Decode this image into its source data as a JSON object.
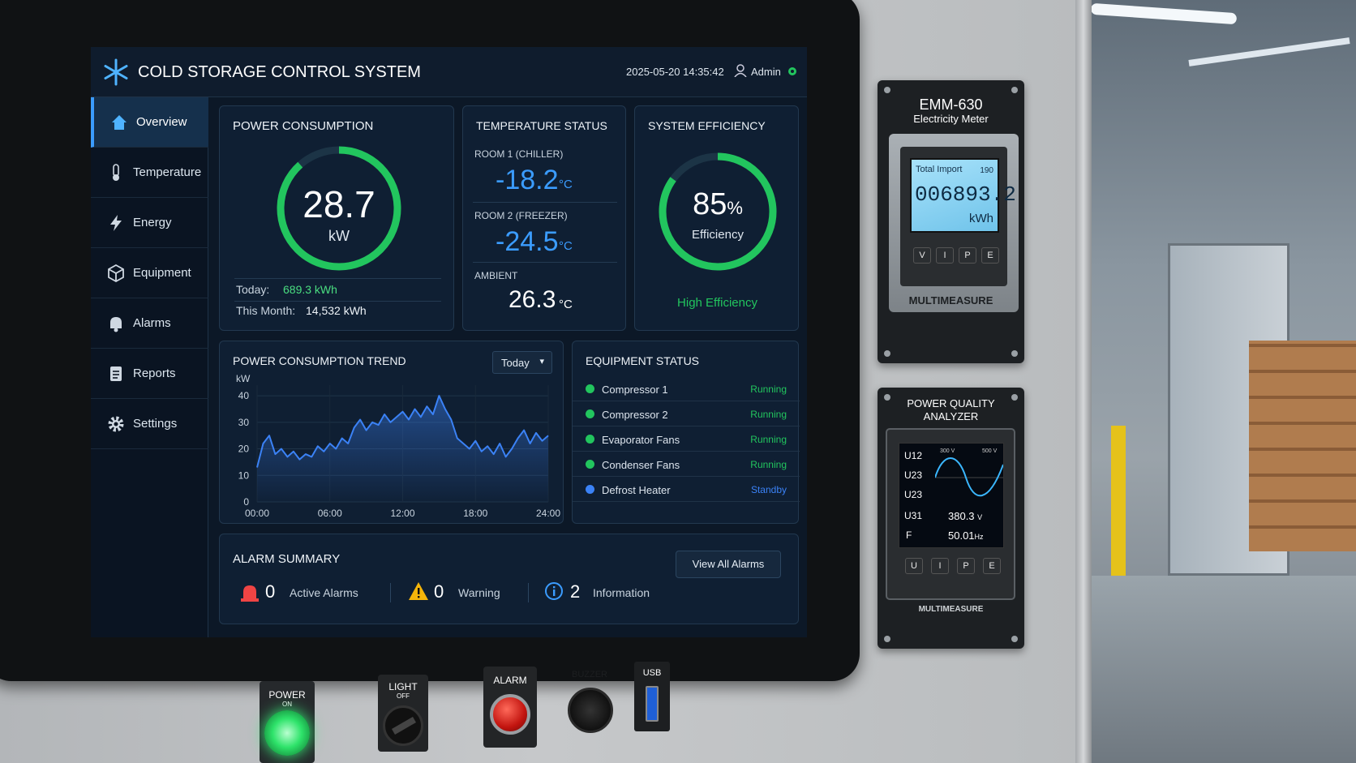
{
  "header": {
    "title": "COLD STORAGE CONTROL SYSTEM",
    "datetime": "2025-05-20 14:35:42",
    "user": "Admin"
  },
  "nav": [
    "Overview",
    "Temperature",
    "Energy",
    "Equipment",
    "Alarms",
    "Reports",
    "Settings"
  ],
  "power": {
    "title": "POWER CONSUMPTION",
    "value": "28.7",
    "unit": "kW",
    "today_label": "Today:",
    "today": "689.3 kWh",
    "month_label": "This Month:",
    "month": "14,532 kWh"
  },
  "temperature": {
    "title": "TEMPERATURE STATUS",
    "rooms": [
      {
        "label": "ROOM 1 (CHILLER)",
        "value": "-18.2",
        "unit": "°C"
      },
      {
        "label": "ROOM 2 (FREEZER)",
        "value": "-24.5",
        "unit": "°C"
      },
      {
        "label": "AMBIENT",
        "value": "26.3",
        "unit": "°C"
      }
    ]
  },
  "efficiency": {
    "title": "SYSTEM EFFICIENCY",
    "value": 85,
    "unit": "%",
    "label": "Efficiency",
    "status": "High Efficiency",
    "color": "#22c55e"
  },
  "chart_data": {
    "type": "line",
    "title": "POWER CONSUMPTION TREND",
    "range": "Today",
    "y_label": "kW",
    "x": [
      0,
      0.5,
      1,
      1.5,
      2,
      2.5,
      3,
      3.5,
      4,
      4.5,
      5,
      5.5,
      6,
      6.5,
      7,
      7.5,
      8,
      8.5,
      9,
      9.5,
      10,
      10.5,
      11,
      11.5,
      12,
      12.5,
      13,
      13.5,
      14,
      14.5,
      15,
      15.5,
      16,
      16.5,
      17,
      17.5,
      18,
      18.5,
      19,
      19.5,
      20,
      20.5,
      21,
      21.5,
      22,
      22.5,
      23,
      23.5,
      24
    ],
    "values": [
      13,
      22,
      25,
      18,
      20,
      17,
      19,
      16,
      18,
      17,
      21,
      19,
      22,
      20,
      24,
      22,
      28,
      31,
      27,
      30,
      29,
      33,
      30,
      32,
      34,
      31,
      35,
      32,
      36,
      33,
      40,
      35,
      31,
      24,
      22,
      20,
      23,
      19,
      21,
      18,
      22,
      17,
      20,
      24,
      27,
      22,
      26,
      23,
      25
    ],
    "color": "#3b82f6",
    "xlim": [
      0,
      24
    ],
    "xticks": [
      {
        "value": 0,
        "label": "00:00"
      },
      {
        "value": 6,
        "label": "06:00"
      },
      {
        "value": 12,
        "label": "12:00"
      },
      {
        "value": 18,
        "label": "18:00"
      },
      {
        "value": 24,
        "label": "24:00"
      }
    ],
    "ylim": [
      0,
      44
    ],
    "yticks": [
      0,
      10,
      20,
      30,
      40
    ],
    "grid": true
  },
  "equipment": {
    "title": "EQUIPMENT STATUS",
    "items": [
      {
        "name": "Compressor 1",
        "status": "Running",
        "color": "#22c55e"
      },
      {
        "name": "Compressor 2",
        "status": "Running",
        "color": "#22c55e"
      },
      {
        "name": "Evaporator Fans",
        "status": "Running",
        "color": "#22c55e"
      },
      {
        "name": "Condenser Fans",
        "status": "Running",
        "color": "#22c55e"
      },
      {
        "name": "Defrost Heater",
        "status": "Standby",
        "color": "#3b82f6"
      }
    ]
  },
  "alarms": {
    "title": "ALARM SUMMARY",
    "items": [
      {
        "count": 0,
        "label": "Active Alarms"
      },
      {
        "count": 0,
        "label": "Warning"
      },
      {
        "count": 2,
        "label": "Information"
      }
    ],
    "button": "View All Alarms"
  },
  "meter": {
    "model": "EMM-630",
    "name": "Electricity Meter",
    "reading_label": "Total Import",
    "code": "190",
    "reading": "006893.2",
    "unit": "kWh",
    "buttons": [
      "V",
      "I",
      "P",
      "E"
    ],
    "brand": "MULTIMEASURE"
  },
  "analyzer": {
    "title": [
      "POWER QUALITY",
      "ANALYZER"
    ],
    "labels": [
      "U12",
      "U23",
      "U23",
      "U31",
      "F"
    ],
    "scale": [
      "300 V",
      "500 V"
    ],
    "readings": [
      {
        "value": "380.3",
        "unit": "V"
      },
      {
        "value": "50.01",
        "unit": "Hz"
      }
    ],
    "buttons": [
      "U",
      "I",
      "P",
      "E"
    ],
    "brand": "MULTIMEASURE"
  },
  "panel": {
    "power": [
      "POWER",
      "ON"
    ],
    "light": [
      "LIGHT",
      "OFF"
    ],
    "alarm": "ALARM",
    "buzzer": "BUZZER",
    "usb": "USB"
  }
}
